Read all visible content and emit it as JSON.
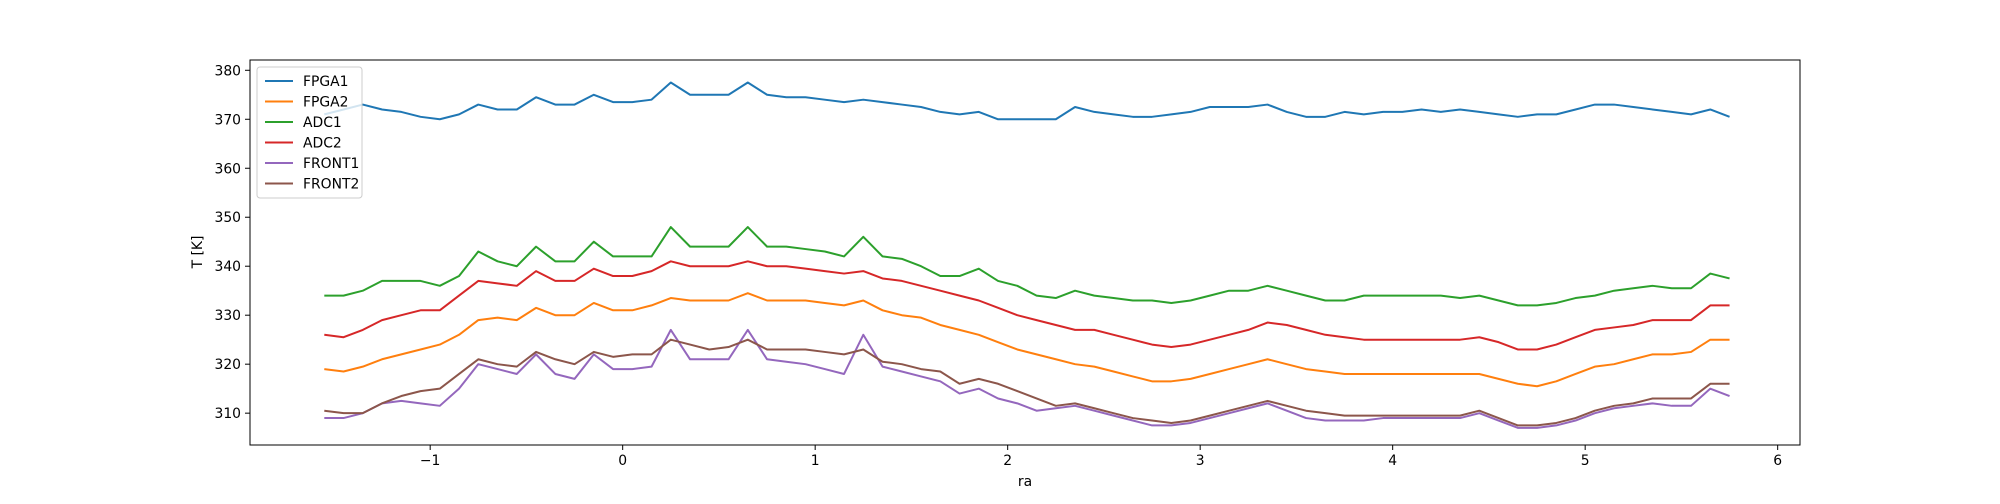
{
  "chart_data": {
    "type": "line",
    "x_label": "ra",
    "y_label": "T [K]",
    "xlim": [
      -1.936,
      6.116
    ],
    "ylim": [
      303.5,
      382.1
    ],
    "xticks": [
      {
        "value": -1,
        "label": "−1"
      },
      0,
      1,
      2,
      3,
      4,
      5,
      6
    ],
    "yticks": [
      310,
      320,
      330,
      340,
      350,
      360,
      370,
      380
    ],
    "legend": "upper left",
    "x": [
      -1.55,
      -1.45,
      -1.35,
      -1.25,
      -1.15,
      -1.05,
      -0.95,
      -0.85,
      -0.75,
      -0.65,
      -0.55,
      -0.45,
      -0.35,
      -0.25,
      -0.15,
      -0.05,
      0.05,
      0.15,
      0.25,
      0.35,
      0.45,
      0.55,
      0.65,
      0.75,
      0.85,
      0.95,
      1.05,
      1.15,
      1.25,
      1.35,
      1.45,
      1.55,
      1.65,
      1.75,
      1.85,
      1.95,
      2.05,
      2.15,
      2.25,
      2.35,
      2.45,
      2.55,
      2.65,
      2.75,
      2.85,
      2.95,
      3.05,
      3.15,
      3.25,
      3.35,
      3.45,
      3.55,
      3.65,
      3.75,
      3.85,
      3.95,
      4.05,
      4.15,
      4.25,
      4.35,
      4.45,
      4.55,
      4.65,
      4.75,
      4.85,
      4.95,
      5.05,
      5.15,
      5.25,
      5.35,
      5.45,
      5.55,
      5.65,
      5.75
    ],
    "series": [
      {
        "name": "FPGA1",
        "color": "#1f77b4",
        "values": [
          371,
          372,
          373,
          372,
          371.5,
          370.5,
          370,
          371,
          373,
          372,
          372,
          374.5,
          373,
          373,
          375,
          373.5,
          373.5,
          374,
          377.5,
          375,
          375,
          375,
          377.5,
          375,
          374.5,
          374.5,
          374,
          373.5,
          374,
          373.5,
          373,
          372.5,
          371.5,
          371,
          371.5,
          370,
          370,
          370,
          370,
          372.5,
          371.5,
          371,
          370.5,
          370.5,
          371,
          371.5,
          372.5,
          372.5,
          372.5,
          373,
          371.5,
          370.5,
          370.5,
          371.5,
          371,
          371.5,
          371.5,
          372,
          371.5,
          372,
          371.5,
          371,
          370.5,
          371,
          371,
          372,
          373,
          373,
          372.5,
          372,
          371.5,
          371,
          372,
          370.5
        ]
      },
      {
        "name": "FPGA2",
        "color": "#ff7f0e",
        "values": [
          319,
          318.5,
          319.5,
          321,
          322,
          323,
          324,
          326,
          329,
          329.5,
          329,
          331.5,
          330,
          330,
          332.5,
          331,
          331,
          332,
          333.5,
          333,
          333,
          333,
          334.5,
          333,
          333,
          333,
          332.5,
          332,
          333,
          331,
          330,
          329.5,
          328,
          327,
          326,
          324.5,
          323,
          322,
          321,
          320,
          319.5,
          318.5,
          317.5,
          316.5,
          316.5,
          317,
          318,
          319,
          320,
          321,
          320,
          319,
          318.5,
          318,
          318,
          318,
          318,
          318,
          318,
          318,
          318,
          317,
          316,
          315.5,
          316.5,
          318,
          319.5,
          320,
          321,
          322,
          322,
          322.5,
          325,
          325
        ]
      },
      {
        "name": "ADC1",
        "color": "#2ca02c",
        "values": [
          334,
          334,
          335,
          337,
          337,
          337,
          336,
          338,
          343,
          341,
          340,
          344,
          341,
          341,
          345,
          342,
          342,
          342,
          348,
          344,
          344,
          344,
          348,
          344,
          344,
          343.5,
          343,
          342,
          346,
          342,
          341.5,
          340,
          338,
          338,
          339.5,
          337,
          336,
          334,
          333.5,
          335,
          334,
          333.5,
          333,
          333,
          332.5,
          333,
          334,
          335,
          335,
          336,
          335,
          334,
          333,
          333,
          334,
          334,
          334,
          334,
          334,
          333.5,
          334,
          333,
          332,
          332,
          332.5,
          333.5,
          334,
          335,
          335.5,
          336,
          335.5,
          335.5,
          338.5,
          337.5
        ]
      },
      {
        "name": "ADC2",
        "color": "#d62728",
        "values": [
          326,
          325.5,
          327,
          329,
          330,
          331,
          331,
          334,
          337,
          336.5,
          336,
          339,
          337,
          337,
          339.5,
          338,
          338,
          339,
          341,
          340,
          340,
          340,
          341,
          340,
          340,
          339.5,
          339,
          338.5,
          339,
          337.5,
          337,
          336,
          335,
          334,
          333,
          331.5,
          330,
          329,
          328,
          327,
          327,
          326,
          325,
          324,
          323.5,
          324,
          325,
          326,
          327,
          328.5,
          328,
          327,
          326,
          325.5,
          325,
          325,
          325,
          325,
          325,
          325,
          325.5,
          324.5,
          323,
          323,
          324,
          325.5,
          327,
          327.5,
          328,
          329,
          329,
          329,
          332,
          332
        ]
      },
      {
        "name": "FRONT1",
        "color": "#9467bd",
        "values": [
          309,
          309,
          310,
          312,
          312.5,
          312,
          311.5,
          315,
          320,
          319,
          318,
          322,
          318,
          317,
          322,
          319,
          319,
          319.5,
          327,
          321,
          321,
          321,
          327,
          321,
          320.5,
          320,
          319,
          318,
          326,
          319.5,
          318.5,
          317.5,
          316.5,
          314,
          315,
          313,
          312,
          310.5,
          311,
          311.5,
          310.5,
          309.5,
          308.5,
          307.5,
          307.5,
          308,
          309,
          310,
          311,
          312,
          310.5,
          309,
          308.5,
          308.5,
          308.5,
          309,
          309,
          309,
          309,
          309,
          310,
          308.5,
          307,
          307,
          307.5,
          308.5,
          310,
          311,
          311.5,
          312,
          311.5,
          311.5,
          315,
          313.5
        ]
      },
      {
        "name": "FRONT2",
        "color": "#8c564b",
        "values": [
          310.5,
          310,
          310,
          312,
          313.5,
          314.5,
          315,
          318,
          321,
          320,
          319.5,
          322.5,
          321,
          320,
          322.5,
          321.5,
          322,
          322,
          325,
          324,
          323,
          323.5,
          325,
          323,
          323,
          323,
          322.5,
          322,
          323,
          320.5,
          320,
          319,
          318.5,
          316,
          317,
          316,
          314.5,
          313,
          311.5,
          312,
          311,
          310,
          309,
          308.5,
          308,
          308.5,
          309.5,
          310.5,
          311.5,
          312.5,
          311.5,
          310.5,
          310,
          309.5,
          309.5,
          309.5,
          309.5,
          309.5,
          309.5,
          309.5,
          310.5,
          309,
          307.5,
          307.5,
          308,
          309,
          310.5,
          311.5,
          312,
          313,
          313,
          313,
          316,
          316
        ]
      }
    ]
  }
}
